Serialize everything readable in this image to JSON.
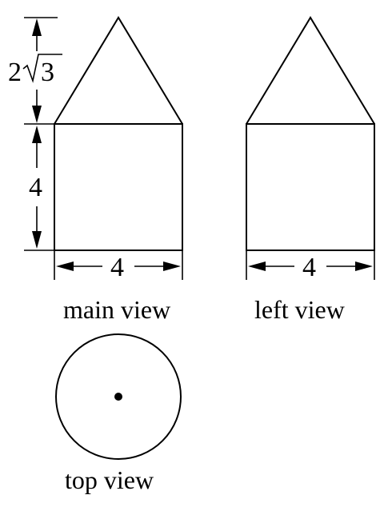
{
  "views": {
    "main": {
      "caption": "main view"
    },
    "left": {
      "caption": "left view"
    },
    "top": {
      "caption": "top view"
    }
  },
  "dimensions": {
    "cone_height": {
      "coefficient": "2",
      "radicand": "3"
    },
    "cylinder_height": "4",
    "main_width": "4",
    "left_width": "4"
  }
}
